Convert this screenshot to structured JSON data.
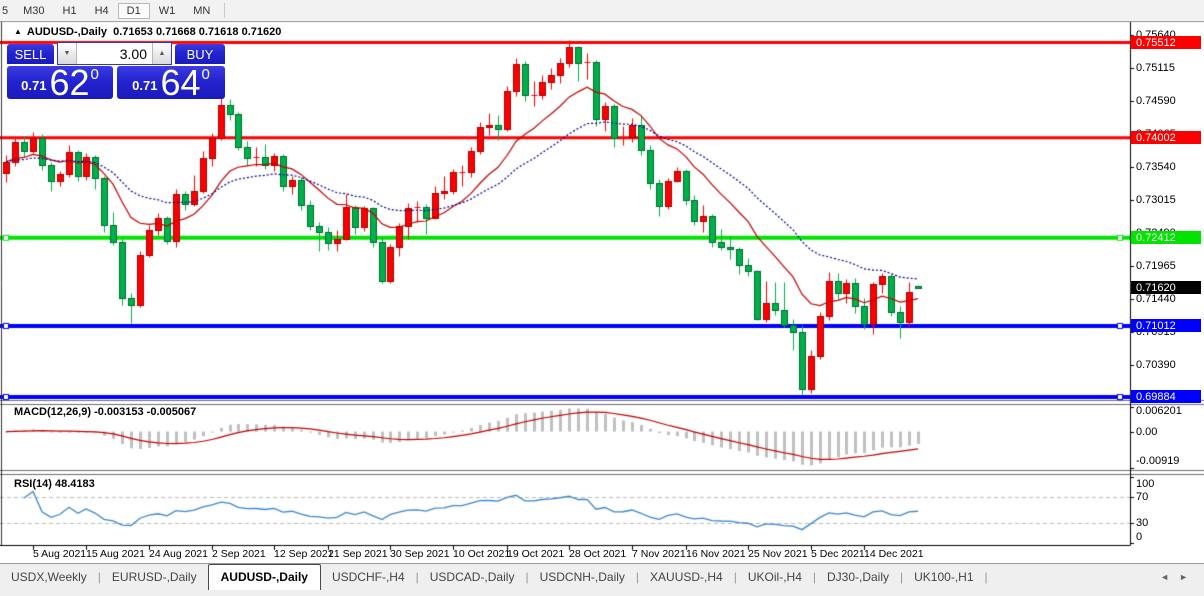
{
  "toolbar": {
    "items": [
      {
        "label": "5"
      },
      {
        "label": "M30"
      },
      {
        "label": "H1"
      },
      {
        "label": "H4"
      },
      {
        "label": "D1",
        "active": true
      },
      {
        "label": "W1"
      },
      {
        "label": "MN"
      }
    ]
  },
  "window": {
    "collapse_arrow": "▲",
    "symbol_title": "AUDUSD-,Daily",
    "ohlc_text": "0.71653 0.71668 0.71618 0.71620"
  },
  "trade_panel": {
    "sell_label": "SELL",
    "buy_label": "BUY",
    "volume": "3.00",
    "sell_price": {
      "prefix": "0.71",
      "big": "62",
      "sup": "0"
    },
    "buy_price": {
      "prefix": "0.71",
      "big": "64",
      "sup": "0"
    },
    "panel_color": "#2424d0"
  },
  "chart_data": {
    "type": "candlestick",
    "title": "AUDUSD-,Daily",
    "symbol": "AUDUSD",
    "timeframe": "Daily",
    "last_bar_ohlc": [
      0.71653,
      0.71668,
      0.71618,
      0.7162
    ],
    "current_price": {
      "value": 0.7162,
      "label": "0.71620",
      "bg": "#000000"
    },
    "ylim": [
      0.69836,
      0.75807
    ],
    "bull_color": "#fe0000",
    "bear_color": "#00b04a",
    "price_ticks": [
      {
        "p": 0.7564,
        "t": "0.75640"
      },
      {
        "p": 0.75115,
        "t": "0.75115"
      },
      {
        "p": 0.7459,
        "t": "0.74590"
      },
      {
        "p": 0.74065,
        "t": "0.74065"
      },
      {
        "p": 0.7354,
        "t": "0.73540"
      },
      {
        "p": 0.73015,
        "t": "0.73015"
      },
      {
        "p": 0.7249,
        "t": "0.72490"
      },
      {
        "p": 0.71965,
        "t": "0.71965"
      },
      {
        "p": 0.7144,
        "t": "0.71440"
      },
      {
        "p": 0.70915,
        "t": "0.70915"
      },
      {
        "p": 0.7039,
        "t": "0.70390"
      },
      {
        "p": 0.69865,
        "t": "0.69865"
      }
    ],
    "hlines": [
      {
        "price": 0.75512,
        "label": "0.75512",
        "color": "#ff0000",
        "width": 3,
        "markers": false
      },
      {
        "price": 0.74002,
        "label": "0.74002",
        "color": "#ff0000",
        "width": 3,
        "markers": false
      },
      {
        "price": 0.72412,
        "label": "0.72412",
        "color": "#00e400",
        "width": 4,
        "markers": true
      },
      {
        "price": 0.71012,
        "label": "0.71012",
        "color": "#0000ff",
        "width": 4,
        "markers": true
      },
      {
        "price": 0.69884,
        "label": "0.69884",
        "color": "#0000ff",
        "width": 4,
        "markers": true
      }
    ],
    "overlays": [
      {
        "name": "ma-fast",
        "period": 12,
        "color": "#c40000",
        "style": "solid"
      },
      {
        "name": "ma-slow",
        "period": 26,
        "color": "#000099",
        "style": "dotted"
      }
    ],
    "indicators": [
      {
        "name": "MACD",
        "label": "MACD(12,26,9) -0.003153 -0.005067",
        "params": [
          12,
          26,
          9
        ],
        "last_values": [
          -0.003153,
          -0.005067
        ],
        "scale": [
          {
            "t": "0.006201",
            "v": 0.006201
          },
          {
            "t": "0.00",
            "v": 0
          },
          {
            "t": "-0.00919",
            "v": -0.00919
          }
        ],
        "histogram_color": "#c0c0c0",
        "signal_color": "#c40000"
      },
      {
        "name": "RSI",
        "label": "RSI(14) 48.4183",
        "period": 14,
        "value": 48.4183,
        "scale": [
          {
            "t": "100",
            "v": 100
          },
          {
            "t": "70",
            "v": 70,
            "dashed": true
          },
          {
            "t": "30",
            "v": 30,
            "dashed": true
          },
          {
            "t": "0",
            "v": 0
          }
        ],
        "color": "#3a87d0",
        "level_line_color": "#bbbbbb"
      }
    ],
    "dates": [
      {
        "text": "5 Aug 2021",
        "bar": 3
      },
      {
        "text": "15 Aug 2021",
        "bar": 9
      },
      {
        "text": "24 Aug 2021",
        "bar": 16
      },
      {
        "text": "2 Sep 2021",
        "bar": 23
      },
      {
        "text": "12 Sep 2021",
        "bar": 30
      },
      {
        "text": "21 Sep 2021",
        "bar": 36
      },
      {
        "text": "30 Sep 2021",
        "bar": 43
      },
      {
        "text": "10 Oct 2021",
        "bar": 50
      },
      {
        "text": "19 Oct 2021",
        "bar": 56
      },
      {
        "text": "28 Oct 2021",
        "bar": 63
      },
      {
        "text": "7 Nov 2021",
        "bar": 70
      },
      {
        "text": "16 Nov 2021",
        "bar": 76
      },
      {
        "text": "25 Nov 2021",
        "bar": 83
      },
      {
        "text": "5 Dec 2021",
        "bar": 90
      },
      {
        "text": "14 Dec 2021",
        "bar": 96
      }
    ],
    "candles": [
      [
        0.7344,
        0.7373,
        0.733,
        0.7362
      ],
      [
        0.7362,
        0.74,
        0.7355,
        0.7394
      ],
      [
        0.7394,
        0.7403,
        0.7369,
        0.7379
      ],
      [
        0.7379,
        0.7409,
        0.7376,
        0.74
      ],
      [
        0.74,
        0.7406,
        0.7349,
        0.7356
      ],
      [
        0.7356,
        0.7362,
        0.7316,
        0.7332
      ],
      [
        0.7332,
        0.7348,
        0.7323,
        0.7343
      ],
      [
        0.7343,
        0.7389,
        0.7338,
        0.7377
      ],
      [
        0.7377,
        0.738,
        0.7331,
        0.734
      ],
      [
        0.734,
        0.7376,
        0.7333,
        0.737
      ],
      [
        0.737,
        0.7372,
        0.7319,
        0.7336
      ],
      [
        0.7336,
        0.734,
        0.7251,
        0.7262
      ],
      [
        0.7262,
        0.7282,
        0.723,
        0.7235
      ],
      [
        0.7235,
        0.724,
        0.7135,
        0.7145
      ],
      [
        0.7145,
        0.7154,
        0.7106,
        0.7135
      ],
      [
        0.7135,
        0.722,
        0.7132,
        0.7214
      ],
      [
        0.7214,
        0.7261,
        0.721,
        0.7254
      ],
      [
        0.7254,
        0.7281,
        0.7245,
        0.7272
      ],
      [
        0.7272,
        0.7276,
        0.7232,
        0.7236
      ],
      [
        0.7236,
        0.7318,
        0.7226,
        0.731
      ],
      [
        0.731,
        0.7316,
        0.7285,
        0.7295
      ],
      [
        0.7295,
        0.7341,
        0.7291,
        0.7316
      ],
      [
        0.7316,
        0.7379,
        0.7313,
        0.7368
      ],
      [
        0.7368,
        0.7408,
        0.7355,
        0.74
      ],
      [
        0.74,
        0.7478,
        0.7397,
        0.7452
      ],
      [
        0.7452,
        0.7462,
        0.7428,
        0.7437
      ],
      [
        0.7437,
        0.7441,
        0.738,
        0.7386
      ],
      [
        0.7386,
        0.7395,
        0.7356,
        0.7368
      ],
      [
        0.7368,
        0.7386,
        0.7355,
        0.7369
      ],
      [
        0.7369,
        0.739,
        0.735,
        0.7356
      ],
      [
        0.7356,
        0.7376,
        0.7348,
        0.7371
      ],
      [
        0.7371,
        0.7375,
        0.7316,
        0.7323
      ],
      [
        0.7323,
        0.734,
        0.731,
        0.7333
      ],
      [
        0.7333,
        0.7337,
        0.7285,
        0.7294
      ],
      [
        0.7294,
        0.7301,
        0.7254,
        0.726
      ],
      [
        0.726,
        0.7267,
        0.7221,
        0.725
      ],
      [
        0.725,
        0.7259,
        0.7222,
        0.7233
      ],
      [
        0.7233,
        0.7254,
        0.722,
        0.724
      ],
      [
        0.724,
        0.7311,
        0.7237,
        0.729
      ],
      [
        0.729,
        0.7293,
        0.7247,
        0.7259
      ],
      [
        0.7259,
        0.7291,
        0.7252,
        0.7288
      ],
      [
        0.7288,
        0.729,
        0.7227,
        0.7235
      ],
      [
        0.7235,
        0.7243,
        0.7169,
        0.7172
      ],
      [
        0.7172,
        0.7232,
        0.717,
        0.7227
      ],
      [
        0.7227,
        0.7265,
        0.7213,
        0.726
      ],
      [
        0.726,
        0.7296,
        0.7239,
        0.7288
      ],
      [
        0.7288,
        0.73,
        0.7266,
        0.729
      ],
      [
        0.729,
        0.7295,
        0.7248,
        0.7273
      ],
      [
        0.7273,
        0.7323,
        0.7271,
        0.7312
      ],
      [
        0.7312,
        0.734,
        0.7303,
        0.7315
      ],
      [
        0.7315,
        0.735,
        0.731,
        0.7346
      ],
      [
        0.7346,
        0.7357,
        0.7324,
        0.7346
      ],
      [
        0.7346,
        0.7385,
        0.7337,
        0.7379
      ],
      [
        0.7379,
        0.7425,
        0.7375,
        0.7417
      ],
      [
        0.7417,
        0.7439,
        0.7405,
        0.742
      ],
      [
        0.742,
        0.7436,
        0.7396,
        0.7414
      ],
      [
        0.7414,
        0.7482,
        0.741,
        0.7475
      ],
      [
        0.7475,
        0.7527,
        0.7467,
        0.7517
      ],
      [
        0.7517,
        0.7522,
        0.7459,
        0.7468
      ],
      [
        0.7468,
        0.749,
        0.745,
        0.7468
      ],
      [
        0.7468,
        0.75,
        0.7462,
        0.7489
      ],
      [
        0.7489,
        0.7511,
        0.7477,
        0.75
      ],
      [
        0.75,
        0.7527,
        0.7487,
        0.7518
      ],
      [
        0.7518,
        0.7555,
        0.7513,
        0.7544
      ],
      [
        0.7544,
        0.7546,
        0.749,
        0.7519
      ],
      [
        0.7519,
        0.7535,
        0.7494,
        0.7521
      ],
      [
        0.7521,
        0.7524,
        0.7419,
        0.743
      ],
      [
        0.743,
        0.7457,
        0.7411,
        0.7451
      ],
      [
        0.7451,
        0.7454,
        0.7385,
        0.7399
      ],
      [
        0.7399,
        0.7419,
        0.7388,
        0.7401
      ],
      [
        0.7401,
        0.7431,
        0.7394,
        0.742
      ],
      [
        0.742,
        0.7436,
        0.7372,
        0.7381
      ],
      [
        0.7381,
        0.7388,
        0.7319,
        0.7328
      ],
      [
        0.7328,
        0.7334,
        0.7276,
        0.7291
      ],
      [
        0.7291,
        0.7336,
        0.7287,
        0.7332
      ],
      [
        0.7332,
        0.7354,
        0.733,
        0.7347
      ],
      [
        0.7347,
        0.735,
        0.7293,
        0.7301
      ],
      [
        0.7301,
        0.7309,
        0.7262,
        0.7268
      ],
      [
        0.7268,
        0.7293,
        0.725,
        0.7276
      ],
      [
        0.7276,
        0.7279,
        0.7227,
        0.7235
      ],
      [
        0.7235,
        0.7255,
        0.7222,
        0.7227
      ],
      [
        0.7227,
        0.7244,
        0.7207,
        0.7223
      ],
      [
        0.7223,
        0.7226,
        0.7184,
        0.7198
      ],
      [
        0.7198,
        0.7209,
        0.7181,
        0.7188
      ],
      [
        0.7188,
        0.719,
        0.7111,
        0.7113
      ],
      [
        0.7113,
        0.7172,
        0.7108,
        0.7137
      ],
      [
        0.7137,
        0.7171,
        0.7118,
        0.7127
      ],
      [
        0.7127,
        0.7171,
        0.71,
        0.7103
      ],
      [
        0.7103,
        0.7113,
        0.7063,
        0.7091
      ],
      [
        0.7091,
        0.7103,
        0.6993,
        0.7001
      ],
      [
        0.7001,
        0.7063,
        0.6995,
        0.7053
      ],
      [
        0.7053,
        0.7124,
        0.7048,
        0.7117
      ],
      [
        0.7117,
        0.7187,
        0.711,
        0.7173
      ],
      [
        0.7173,
        0.7185,
        0.7144,
        0.7154
      ],
      [
        0.7154,
        0.7176,
        0.7137,
        0.717
      ],
      [
        0.717,
        0.7177,
        0.7122,
        0.7133
      ],
      [
        0.7133,
        0.7145,
        0.7096,
        0.7105
      ],
      [
        0.7105,
        0.7171,
        0.7089,
        0.7168
      ],
      [
        0.7168,
        0.7186,
        0.7154,
        0.7181
      ],
      [
        0.7181,
        0.7184,
        0.7117,
        0.7124
      ],
      [
        0.7124,
        0.7133,
        0.7082,
        0.7107
      ],
      [
        0.7107,
        0.7171,
        0.7101,
        0.7155
      ],
      [
        0.71653,
        0.71668,
        0.71618,
        0.7162
      ]
    ]
  },
  "tabs": {
    "items": [
      {
        "label": "USDX,Weekly"
      },
      {
        "label": "EURUSD-,Daily"
      },
      {
        "label": "AUDUSD-,Daily",
        "active": true
      },
      {
        "label": "USDCHF-,H4"
      },
      {
        "label": "USDCAD-,Daily"
      },
      {
        "label": "USDCNH-,Daily"
      },
      {
        "label": "XAUUSD-,H4"
      },
      {
        "label": "UKOil-,H4"
      },
      {
        "label": "DJ30-,Daily"
      },
      {
        "label": "UK100-,H1"
      }
    ],
    "scroll_left": "◄",
    "scroll_right": "►"
  }
}
